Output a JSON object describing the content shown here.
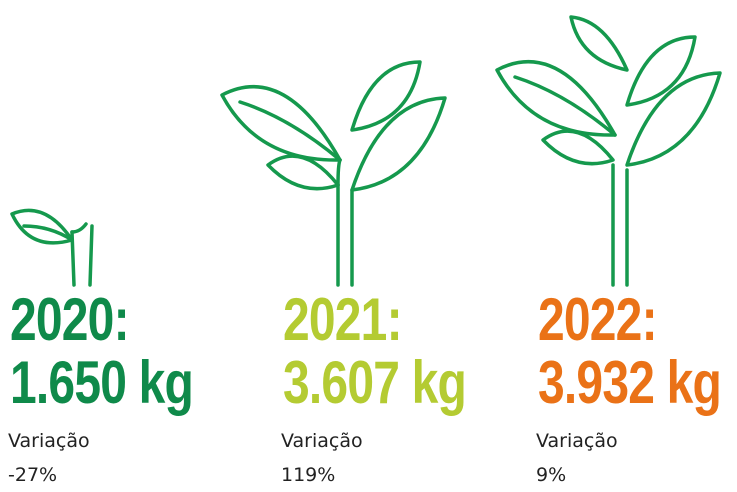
{
  "items": [
    {
      "year": "2020:",
      "amount": "1.650 kg",
      "variation_label": "Variação",
      "variation": "-27%",
      "color": "#0f8a4a"
    },
    {
      "year": "2021:",
      "amount": "3.607 kg",
      "variation_label": "Variação",
      "variation": "119%",
      "color": "#b4cb32"
    },
    {
      "year": "2022:",
      "amount": "3.932 kg",
      "variation_label": "Variação",
      "variation": "9%",
      "color": "#ea7217"
    }
  ]
}
